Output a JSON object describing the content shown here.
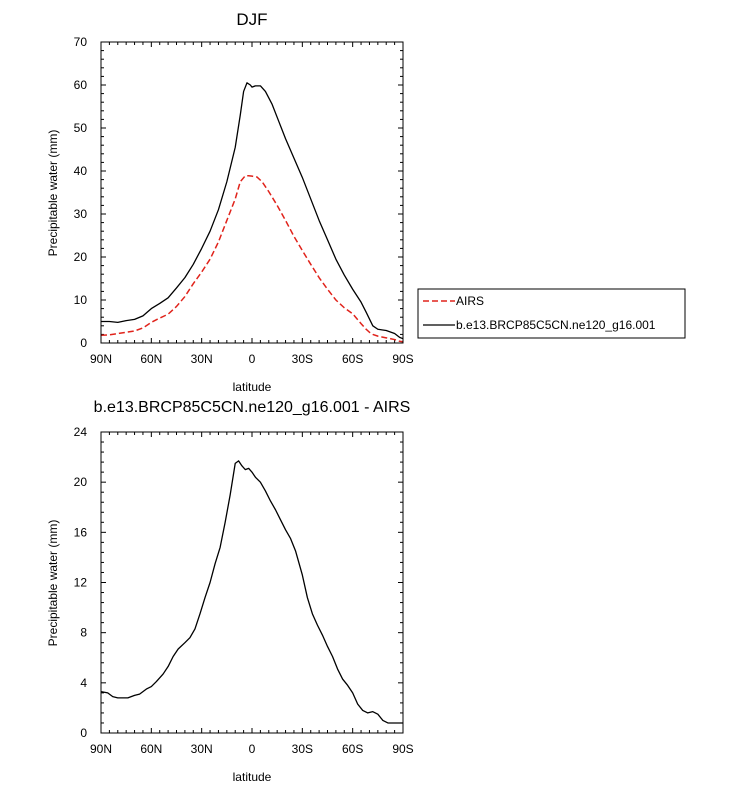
{
  "chart_data": [
    {
      "type": "line",
      "title": "DJF",
      "xlabel": "latitude",
      "ylabel": "Precipitable water (mm)",
      "xlim": [
        -90,
        90
      ],
      "ylim": [
        0,
        70
      ],
      "x_ticks": [
        -90,
        -60,
        -30,
        0,
        30,
        60,
        90
      ],
      "x_tick_labels": [
        "90N",
        "60N",
        "30N",
        "0",
        "30S",
        "60S",
        "90S"
      ],
      "y_ticks": [
        0,
        10,
        20,
        30,
        40,
        50,
        60,
        70
      ],
      "y_tick_labels": [
        "0",
        "10",
        "20",
        "30",
        "40",
        "50",
        "60",
        "70"
      ],
      "legend": "right",
      "series": [
        {
          "name": "AIRS",
          "color": "#e0231b",
          "dash": "dashed",
          "x": [
            -90,
            -85,
            -80,
            -75,
            -70,
            -65,
            -60,
            -55,
            -50,
            -45,
            -40,
            -35,
            -30,
            -25,
            -20,
            -15,
            -10,
            -7,
            -4,
            -2,
            0,
            3,
            6,
            10,
            15,
            20,
            25,
            30,
            35,
            40,
            45,
            50,
            55,
            60,
            65,
            68,
            70,
            72,
            75,
            80,
            85,
            88,
            90
          ],
          "y": [
            1.8,
            1.9,
            2.2,
            2.5,
            2.8,
            3.5,
            4.8,
            5.8,
            6.7,
            8.5,
            10.8,
            13.8,
            16.5,
            19.5,
            23.5,
            28.5,
            33.5,
            37.5,
            38.9,
            38.9,
            38.8,
            38.6,
            37.5,
            35.2,
            32,
            28.5,
            24.8,
            21.5,
            18.3,
            15.2,
            12.5,
            10,
            8.2,
            6.8,
            4.5,
            3.2,
            2.5,
            2,
            1.6,
            1.2,
            0.8,
            0.4,
            0.3
          ]
        },
        {
          "name": "b.e13.BRCP85C5CN.ne120_g16.001",
          "color": "#000000",
          "dash": "solid",
          "x": [
            -90,
            -85,
            -80,
            -75,
            -70,
            -65,
            -60,
            -55,
            -50,
            -45,
            -40,
            -35,
            -30,
            -25,
            -20,
            -15,
            -10,
            -7,
            -5,
            -3,
            -1,
            0,
            2,
            5,
            8,
            12,
            16,
            20,
            25,
            30,
            35,
            40,
            45,
            50,
            55,
            60,
            65,
            68,
            72,
            75,
            80,
            85,
            88,
            90
          ],
          "y": [
            5,
            5,
            4.8,
            5.2,
            5.5,
            6.3,
            8,
            9.2,
            10.5,
            12.8,
            15.2,
            18.3,
            22,
            26,
            31,
            37.5,
            45.5,
            53,
            58.5,
            60.5,
            60,
            59.5,
            59.8,
            59.8,
            58.5,
            55.5,
            51.5,
            47.5,
            43,
            38.5,
            33.5,
            28.5,
            24,
            19.5,
            15.8,
            12.5,
            9.5,
            7.2,
            4,
            3.2,
            2.9,
            2.2,
            1.3,
            1
          ]
        }
      ]
    },
    {
      "type": "line",
      "title": "b.e13.BRCP85C5CN.ne120_g16.001 - AIRS",
      "xlabel": "latitude",
      "ylabel": "Precipitable water (mm)",
      "xlim": [
        -90,
        90
      ],
      "ylim": [
        0,
        24
      ],
      "x_ticks": [
        -90,
        -60,
        -30,
        0,
        30,
        60,
        90
      ],
      "x_tick_labels": [
        "90N",
        "60N",
        "30N",
        "0",
        "30S",
        "60S",
        "90S"
      ],
      "y_ticks": [
        0,
        4,
        8,
        12,
        16,
        20,
        24
      ],
      "y_tick_labels": [
        "0",
        "4",
        "8",
        "12",
        "16",
        "20",
        "24"
      ],
      "series": [
        {
          "name": "b.e13.BRCP85C5CN.ne120_g16.001 - AIRS",
          "color": "#000000",
          "dash": "solid",
          "x": [
            -90,
            -86,
            -83,
            -80,
            -77,
            -74,
            -70,
            -67,
            -63,
            -60,
            -57,
            -53,
            -50,
            -47,
            -44,
            -40,
            -37,
            -34,
            -31,
            -28,
            -25,
            -22,
            -19,
            -16,
            -13,
            -10,
            -8,
            -6,
            -4,
            -2,
            0,
            2,
            5,
            8,
            11,
            14,
            17,
            20,
            23,
            26,
            30,
            33,
            36,
            39,
            42,
            45,
            48,
            51,
            54,
            57,
            60,
            63,
            66,
            69,
            72,
            75,
            78,
            81,
            84,
            86,
            88,
            90
          ],
          "y": [
            3.3,
            3.2,
            2.9,
            2.8,
            2.8,
            2.8,
            3,
            3.1,
            3.5,
            3.7,
            4.1,
            4.7,
            5.3,
            6.1,
            6.7,
            7.2,
            7.6,
            8.3,
            9.5,
            10.8,
            12,
            13.5,
            14.8,
            16.8,
            19,
            21.5,
            21.7,
            21.3,
            21,
            21.1,
            20.8,
            20.4,
            20,
            19.3,
            18.5,
            17.8,
            17,
            16.2,
            15.5,
            14.5,
            12.6,
            10.8,
            9.5,
            8.6,
            7.8,
            6.9,
            6.1,
            5.1,
            4.3,
            3.8,
            3.2,
            2.3,
            1.8,
            1.6,
            1.7,
            1.5,
            1.0,
            0.8,
            0.8,
            0.8,
            0.8,
            0.8
          ]
        }
      ]
    }
  ]
}
